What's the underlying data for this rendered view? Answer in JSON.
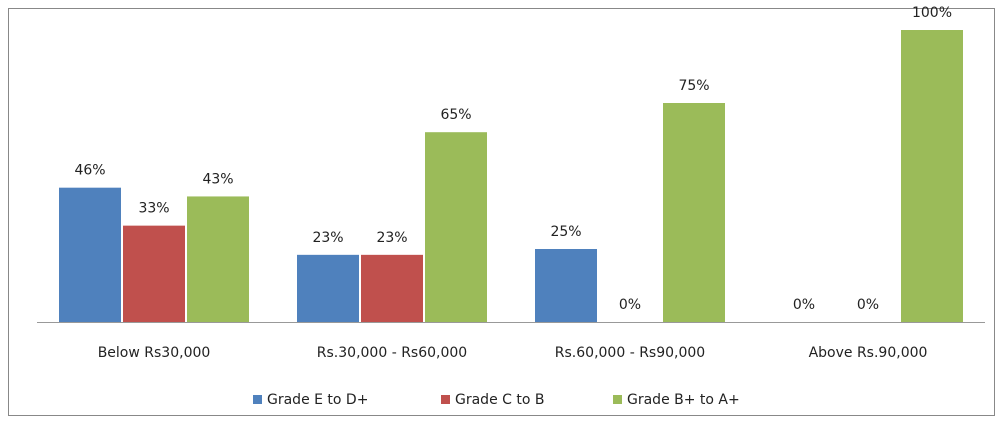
{
  "chart_data": {
    "type": "bar",
    "categories": [
      "Below Rs30,000",
      "Rs.30,000 - Rs60,000",
      "Rs.60,000 - Rs90,000",
      "Above Rs.90,000"
    ],
    "series": [
      {
        "name": "Grade E to D+",
        "color": "#4f81bd",
        "values": [
          46,
          23,
          25,
          0
        ],
        "value_labels": [
          "46%",
          "23%",
          "25%",
          "0%"
        ]
      },
      {
        "name": "Grade C to B",
        "color": "#c0504d",
        "values": [
          33,
          23,
          0,
          0
        ],
        "value_labels": [
          "33%",
          "23%",
          "0%",
          "0%"
        ]
      },
      {
        "name": "Grade B+ to A+",
        "color": "#9bbb59",
        "values": [
          43,
          65,
          75,
          100
        ],
        "value_labels": [
          "43%",
          "65%",
          "75%",
          "100%"
        ]
      }
    ],
    "legend": "bottom"
  }
}
